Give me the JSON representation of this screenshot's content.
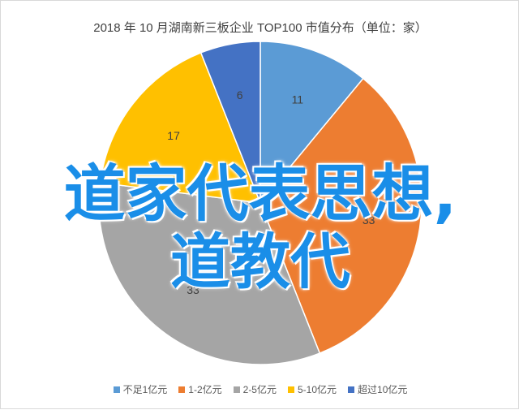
{
  "chart_data": {
    "type": "pie",
    "title": "2018 年 10 月湖南新三板企业 TOP100 市值分布（单位：家）",
    "unit": "家",
    "categories": [
      "不足1亿元",
      "1-2亿元",
      "2-5亿元",
      "5-10亿元",
      "超过10亿元"
    ],
    "values": [
      11,
      33,
      33,
      17,
      6
    ],
    "colors": [
      "#5b9bd5",
      "#ed7d31",
      "#a5a5a5",
      "#ffc000",
      "#4472c4"
    ],
    "legend_position": "bottom"
  },
  "overlay": {
    "line1": "道家代表思想,",
    "line2": "道教代"
  }
}
